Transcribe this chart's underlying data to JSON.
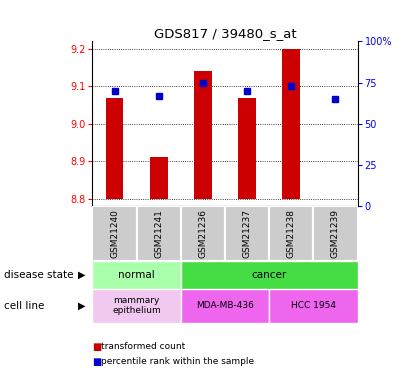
{
  "title": "GDS817 / 39480_s_at",
  "samples": [
    "GSM21240",
    "GSM21241",
    "GSM21236",
    "GSM21237",
    "GSM21238",
    "GSM21239"
  ],
  "transformed_count": [
    9.07,
    8.91,
    9.14,
    9.07,
    9.2,
    8.8
  ],
  "percentile_rank": [
    70,
    67,
    75,
    70,
    73,
    65
  ],
  "ylim_left": [
    8.78,
    9.22
  ],
  "ylim_right": [
    0,
    100
  ],
  "yticks_left": [
    8.8,
    8.9,
    9.0,
    9.1,
    9.2
  ],
  "yticks_right": [
    0,
    25,
    50,
    75,
    100
  ],
  "bar_baseline": 8.8,
  "bar_color": "#cc0000",
  "dot_color": "#0000cc",
  "disease_state": [
    {
      "label": "normal",
      "cols": [
        0,
        1
      ],
      "color": "#aaffaa"
    },
    {
      "label": "cancer",
      "cols": [
        2,
        3,
        4,
        5
      ],
      "color": "#44dd44"
    }
  ],
  "cell_line": [
    {
      "label": "mammary\nepithelium",
      "cols": [
        0,
        1
      ],
      "color": "#f0c8f0"
    },
    {
      "label": "MDA-MB-436",
      "cols": [
        2,
        3
      ],
      "color": "#ee66ee"
    },
    {
      "label": "HCC 1954",
      "cols": [
        4,
        5
      ],
      "color": "#ee66ee"
    }
  ],
  "legend_red": "transformed count",
  "legend_blue": "percentile rank within the sample",
  "background_color": "#ffffff",
  "sample_box_color": "#cccccc",
  "sample_box_edge": "#ffffff"
}
